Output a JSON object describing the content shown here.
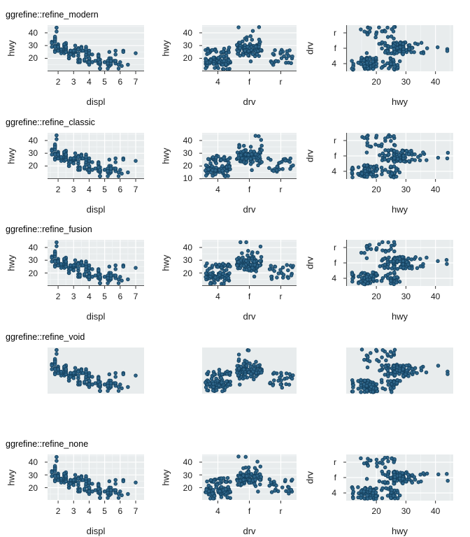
{
  "figure": {
    "kind": "ggplot-theme-comparison-grid",
    "rows": [
      {
        "title": "ggrefine::refine_modern",
        "theme": "modern"
      },
      {
        "title": "ggrefine::refine_classic",
        "theme": "classic"
      },
      {
        "title": "ggrefine::refine_fusion",
        "theme": "fusion"
      },
      {
        "title": "ggrefine::refine_void",
        "theme": "void"
      },
      {
        "title": "ggrefine::refine_none",
        "theme": "none"
      }
    ],
    "themes": {
      "modern": {
        "grid": "primary",
        "axis_line": true,
        "show_axes": true
      },
      "classic": {
        "grid": "mesh",
        "axis_line": true,
        "show_axes": true
      },
      "fusion": {
        "grid": "mesh",
        "axis_line": true,
        "show_axes": true
      },
      "void": {
        "grid": "none",
        "axis_line": false,
        "show_axes": false
      },
      "none": {
        "grid": "mesh",
        "axis_line": false,
        "show_axes": true
      }
    },
    "columns": [
      {
        "xlabel": "displ",
        "ylabel": "hwy",
        "x_type": "displ",
        "y_type": "hwy",
        "x_ticks": [
          2,
          3,
          4,
          5,
          6,
          7
        ],
        "y_ticks": [
          20,
          30,
          40
        ]
      },
      {
        "xlabel": "drv",
        "ylabel": "hwy",
        "x_type": "drv",
        "y_type": "hwy",
        "x_ticks": [
          "4",
          "f",
          "r"
        ],
        "y_ticks": [
          20,
          30,
          40
        ]
      },
      {
        "xlabel": "hwy",
        "ylabel": "drv",
        "x_type": "hwy",
        "y_type": "drv",
        "x_ticks": [
          20,
          30,
          40
        ],
        "y_ticks": [
          "r",
          "f",
          "4"
        ]
      }
    ],
    "tick_overrides": {
      "classic_col2_y_ticks": [
        10,
        20,
        30,
        40
      ]
    }
  },
  "colors": {
    "panel_bg": "#e8eced",
    "grid_major": "#ffffff",
    "grid_minor": "#f3f6f7",
    "axis_line": "#4d4d4d",
    "tick_mark": "#333333",
    "point_fill": "#2e6589",
    "point_stroke": "#14405e",
    "text": "#1a1a1a",
    "title_text": "#000000"
  },
  "chart_data": {
    "type": "scatter",
    "dataset": "mpg (displ, hwy, drv)",
    "panels": [
      {
        "row": "ggrefine::refine_modern",
        "charts": [
          "hwy~displ",
          "hwy~drv (jitter)",
          "drv~hwy (jitter)"
        ]
      },
      {
        "row": "ggrefine::refine_classic",
        "charts": [
          "hwy~displ",
          "hwy~drv (jitter)",
          "drv~hwy (jitter)"
        ]
      },
      {
        "row": "ggrefine::refine_fusion",
        "charts": [
          "hwy~displ",
          "hwy~drv (jitter)",
          "drv~hwy (jitter)"
        ]
      },
      {
        "row": "ggrefine::refine_void",
        "charts": [
          "hwy~displ",
          "hwy~drv (jitter)",
          "drv~hwy (jitter)"
        ]
      },
      {
        "row": "ggrefine::refine_none",
        "charts": [
          "hwy~displ",
          "hwy~drv (jitter)",
          "drv~hwy (jitter)"
        ]
      }
    ],
    "axis_ranges": {
      "displ": [
        1.32,
        7.54
      ],
      "hwy": [
        9.8,
        46
      ],
      "drv_categories_x": [
        "4",
        "f",
        "r"
      ],
      "drv_categories_y": [
        "r",
        "f",
        "4"
      ]
    },
    "points": [
      [
        1.8,
        29,
        "f"
      ],
      [
        1.8,
        29,
        "f"
      ],
      [
        2,
        31,
        "f"
      ],
      [
        2,
        30,
        "f"
      ],
      [
        2.8,
        26,
        "f"
      ],
      [
        2.8,
        26,
        "f"
      ],
      [
        3.1,
        27,
        "f"
      ],
      [
        1.8,
        26,
        "4"
      ],
      [
        1.8,
        25,
        "4"
      ],
      [
        2,
        28,
        "4"
      ],
      [
        2,
        27,
        "4"
      ],
      [
        2.8,
        25,
        "4"
      ],
      [
        2.8,
        25,
        "4"
      ],
      [
        3.1,
        25,
        "4"
      ],
      [
        3.1,
        25,
        "4"
      ],
      [
        2.8,
        24,
        "4"
      ],
      [
        3.1,
        25,
        "4"
      ],
      [
        4.2,
        23,
        "4"
      ],
      [
        5.3,
        20,
        "r"
      ],
      [
        5.3,
        15,
        "r"
      ],
      [
        5.3,
        20,
        "r"
      ],
      [
        5.7,
        17,
        "r"
      ],
      [
        6,
        17,
        "r"
      ],
      [
        5.7,
        26,
        "r"
      ],
      [
        5.7,
        23,
        "r"
      ],
      [
        6.2,
        26,
        "r"
      ],
      [
        6.2,
        25,
        "r"
      ],
      [
        7,
        24,
        "r"
      ],
      [
        5.3,
        14,
        "4"
      ],
      [
        5.3,
        14,
        "4"
      ],
      [
        5.7,
        17,
        "4"
      ],
      [
        6.5,
        15,
        "4"
      ],
      [
        2.4,
        30,
        "f"
      ],
      [
        2.4,
        29,
        "f"
      ],
      [
        3.1,
        26,
        "f"
      ],
      [
        3.5,
        29,
        "f"
      ],
      [
        3.6,
        26,
        "f"
      ],
      [
        2.4,
        24,
        "f"
      ],
      [
        3,
        24,
        "f"
      ],
      [
        3.3,
        22,
        "f"
      ],
      [
        3.3,
        22,
        "f"
      ],
      [
        3.3,
        24,
        "f"
      ],
      [
        3.3,
        24,
        "f"
      ],
      [
        3.3,
        17,
        "f"
      ],
      [
        3.8,
        22,
        "f"
      ],
      [
        3.8,
        21,
        "f"
      ],
      [
        3.8,
        23,
        "f"
      ],
      [
        4,
        23,
        "f"
      ],
      [
        3.7,
        19,
        "4"
      ],
      [
        3.7,
        18,
        "4"
      ],
      [
        3.9,
        17,
        "4"
      ],
      [
        3.9,
        17,
        "4"
      ],
      [
        4.7,
        16,
        "4"
      ],
      [
        4.7,
        16,
        "4"
      ],
      [
        4.7,
        12,
        "4"
      ],
      [
        5.2,
        17,
        "4"
      ],
      [
        5.2,
        15,
        "4"
      ],
      [
        3.9,
        17,
        "4"
      ],
      [
        4.7,
        17,
        "4"
      ],
      [
        4.7,
        12,
        "4"
      ],
      [
        4.7,
        17,
        "4"
      ],
      [
        5.2,
        16,
        "4"
      ],
      [
        5.2,
        18,
        "4"
      ],
      [
        5.9,
        15,
        "4"
      ],
      [
        4.7,
        16,
        "4"
      ],
      [
        4.7,
        12,
        "4"
      ],
      [
        4.7,
        17,
        "4"
      ],
      [
        4.7,
        15,
        "4"
      ],
      [
        4.7,
        17,
        "4"
      ],
      [
        4.7,
        12,
        "4"
      ],
      [
        5.2,
        16,
        "4"
      ],
      [
        5.2,
        12,
        "4"
      ],
      [
        5.7,
        16,
        "4"
      ],
      [
        5.9,
        12,
        "4"
      ],
      [
        4.6,
        17,
        "r"
      ],
      [
        5.4,
        17,
        "r"
      ],
      [
        5.4,
        18,
        "r"
      ],
      [
        4,
        17,
        "4"
      ],
      [
        4,
        19,
        "4"
      ],
      [
        4,
        17,
        "4"
      ],
      [
        4,
        19,
        "4"
      ],
      [
        4.6,
        19,
        "4"
      ],
      [
        5,
        17,
        "4"
      ],
      [
        4.2,
        17,
        "4"
      ],
      [
        4.2,
        17,
        "4"
      ],
      [
        4.6,
        16,
        "4"
      ],
      [
        4.6,
        16,
        "4"
      ],
      [
        4.6,
        17,
        "4"
      ],
      [
        5.4,
        15,
        "4"
      ],
      [
        5.4,
        17,
        "4"
      ],
      [
        3.8,
        26,
        "r"
      ],
      [
        3.8,
        25,
        "r"
      ],
      [
        4,
        26,
        "r"
      ],
      [
        4,
        24,
        "r"
      ],
      [
        4.6,
        21,
        "r"
      ],
      [
        4.6,
        22,
        "r"
      ],
      [
        4.6,
        23,
        "r"
      ],
      [
        4.6,
        22,
        "r"
      ],
      [
        5.4,
        20,
        "r"
      ],
      [
        1.6,
        33,
        "f"
      ],
      [
        1.6,
        32,
        "f"
      ],
      [
        1.6,
        32,
        "f"
      ],
      [
        1.6,
        29,
        "f"
      ],
      [
        1.6,
        32,
        "f"
      ],
      [
        1.8,
        34,
        "f"
      ],
      [
        1.8,
        36,
        "f"
      ],
      [
        1.8,
        36,
        "f"
      ],
      [
        2,
        29,
        "f"
      ],
      [
        2.4,
        26,
        "f"
      ],
      [
        2.4,
        27,
        "f"
      ],
      [
        2.4,
        30,
        "f"
      ],
      [
        2.4,
        31,
        "f"
      ],
      [
        2.5,
        26,
        "f"
      ],
      [
        2.5,
        26,
        "f"
      ],
      [
        3.3,
        28,
        "f"
      ],
      [
        2,
        26,
        "f"
      ],
      [
        2,
        29,
        "f"
      ],
      [
        2,
        28,
        "f"
      ],
      [
        2,
        27,
        "f"
      ],
      [
        2.7,
        24,
        "f"
      ],
      [
        2.7,
        24,
        "f"
      ],
      [
        2.7,
        24,
        "f"
      ],
      [
        3,
        22,
        "4"
      ],
      [
        3.7,
        19,
        "4"
      ],
      [
        4,
        20,
        "4"
      ],
      [
        4.7,
        17,
        "4"
      ],
      [
        4.7,
        12,
        "4"
      ],
      [
        4.7,
        19,
        "4"
      ],
      [
        5.7,
        18,
        "4"
      ],
      [
        6.1,
        14,
        "4"
      ],
      [
        4,
        15,
        "4"
      ],
      [
        4.2,
        17,
        "4"
      ],
      [
        4.4,
        18,
        "4"
      ],
      [
        4.6,
        16,
        "4"
      ],
      [
        5.4,
        17,
        "r"
      ],
      [
        5.4,
        16,
        "r"
      ],
      [
        5.4,
        18,
        "r"
      ],
      [
        4,
        17,
        "4"
      ],
      [
        4,
        19,
        "4"
      ],
      [
        4.6,
        19,
        "4"
      ],
      [
        5,
        17,
        "4"
      ],
      [
        2.4,
        29,
        "f"
      ],
      [
        2.4,
        27,
        "f"
      ],
      [
        2.5,
        31,
        "f"
      ],
      [
        2.5,
        32,
        "f"
      ],
      [
        3.5,
        27,
        "f"
      ],
      [
        3.5,
        26,
        "f"
      ],
      [
        3,
        26,
        "f"
      ],
      [
        3,
        25,
        "f"
      ],
      [
        3.5,
        26,
        "f"
      ],
      [
        3.3,
        19,
        "4"
      ],
      [
        3.3,
        17,
        "4"
      ],
      [
        4,
        20,
        "4"
      ],
      [
        5.6,
        18,
        "4"
      ],
      [
        3.1,
        30,
        "f"
      ],
      [
        3.8,
        28,
        "f"
      ],
      [
        3.8,
        29,
        "f"
      ],
      [
        3.8,
        27,
        "f"
      ],
      [
        5.3,
        25,
        "f"
      ],
      [
        2.5,
        26,
        "4"
      ],
      [
        2.5,
        27,
        "4"
      ],
      [
        2.5,
        25,
        "4"
      ],
      [
        2.5,
        26,
        "4"
      ],
      [
        2.5,
        25,
        "4"
      ],
      [
        2.5,
        27,
        "4"
      ],
      [
        2.2,
        26,
        "4"
      ],
      [
        2.2,
        24,
        "4"
      ],
      [
        2.5,
        26,
        "4"
      ],
      [
        2.5,
        25,
        "4"
      ],
      [
        2.5,
        26,
        "4"
      ],
      [
        2.5,
        26,
        "4"
      ],
      [
        2.5,
        25,
        "4"
      ],
      [
        2.5,
        27,
        "4"
      ],
      [
        2.7,
        20,
        "4"
      ],
      [
        2.7,
        20,
        "4"
      ],
      [
        3.4,
        19,
        "4"
      ],
      [
        3.4,
        17,
        "4"
      ],
      [
        4,
        17,
        "4"
      ],
      [
        4.7,
        16,
        "4"
      ],
      [
        2.2,
        26,
        "f"
      ],
      [
        2.2,
        27,
        "f"
      ],
      [
        2.4,
        30,
        "f"
      ],
      [
        2.4,
        31,
        "f"
      ],
      [
        3,
        26,
        "f"
      ],
      [
        3,
        26,
        "f"
      ],
      [
        3.5,
        28,
        "f"
      ],
      [
        2.2,
        26,
        "f"
      ],
      [
        2.2,
        27,
        "f"
      ],
      [
        2.4,
        31,
        "f"
      ],
      [
        2.4,
        31,
        "f"
      ],
      [
        3,
        26,
        "f"
      ],
      [
        3,
        26,
        "f"
      ],
      [
        3.3,
        27,
        "f"
      ],
      [
        1.8,
        30,
        "f"
      ],
      [
        1.8,
        33,
        "f"
      ],
      [
        1.8,
        35,
        "f"
      ],
      [
        1.8,
        37,
        "f"
      ],
      [
        1.8,
        35,
        "f"
      ],
      [
        4.7,
        17,
        "4"
      ],
      [
        5.7,
        18,
        "4"
      ],
      [
        2.7,
        20,
        "4"
      ],
      [
        2.7,
        22,
        "4"
      ],
      [
        2.7,
        22,
        "4"
      ],
      [
        3.4,
        19,
        "4"
      ],
      [
        3.4,
        18,
        "4"
      ],
      [
        4,
        20,
        "4"
      ],
      [
        4,
        20,
        "4"
      ],
      [
        2,
        29,
        "f"
      ],
      [
        2,
        26,
        "f"
      ],
      [
        2,
        29,
        "f"
      ],
      [
        2,
        29,
        "f"
      ],
      [
        2.8,
        24,
        "f"
      ],
      [
        1.9,
        44,
        "f"
      ],
      [
        2,
        29,
        "f"
      ],
      [
        2,
        26,
        "f"
      ],
      [
        2,
        29,
        "f"
      ],
      [
        2,
        29,
        "f"
      ],
      [
        2.5,
        29,
        "f"
      ],
      [
        2.5,
        29,
        "f"
      ],
      [
        2.8,
        23,
        "f"
      ],
      [
        2.8,
        23,
        "f"
      ],
      [
        1.9,
        44,
        "f"
      ],
      [
        1.9,
        41,
        "f"
      ],
      [
        2,
        29,
        "f"
      ],
      [
        2,
        26,
        "f"
      ],
      [
        2.5,
        28,
        "f"
      ],
      [
        2.5,
        29,
        "f"
      ],
      [
        1.8,
        29,
        "f"
      ],
      [
        1.8,
        29,
        "f"
      ],
      [
        2,
        28,
        "f"
      ],
      [
        2,
        29,
        "f"
      ],
      [
        2.8,
        26,
        "f"
      ],
      [
        2.8,
        26,
        "f"
      ],
      [
        3.6,
        26,
        "f"
      ]
    ]
  }
}
